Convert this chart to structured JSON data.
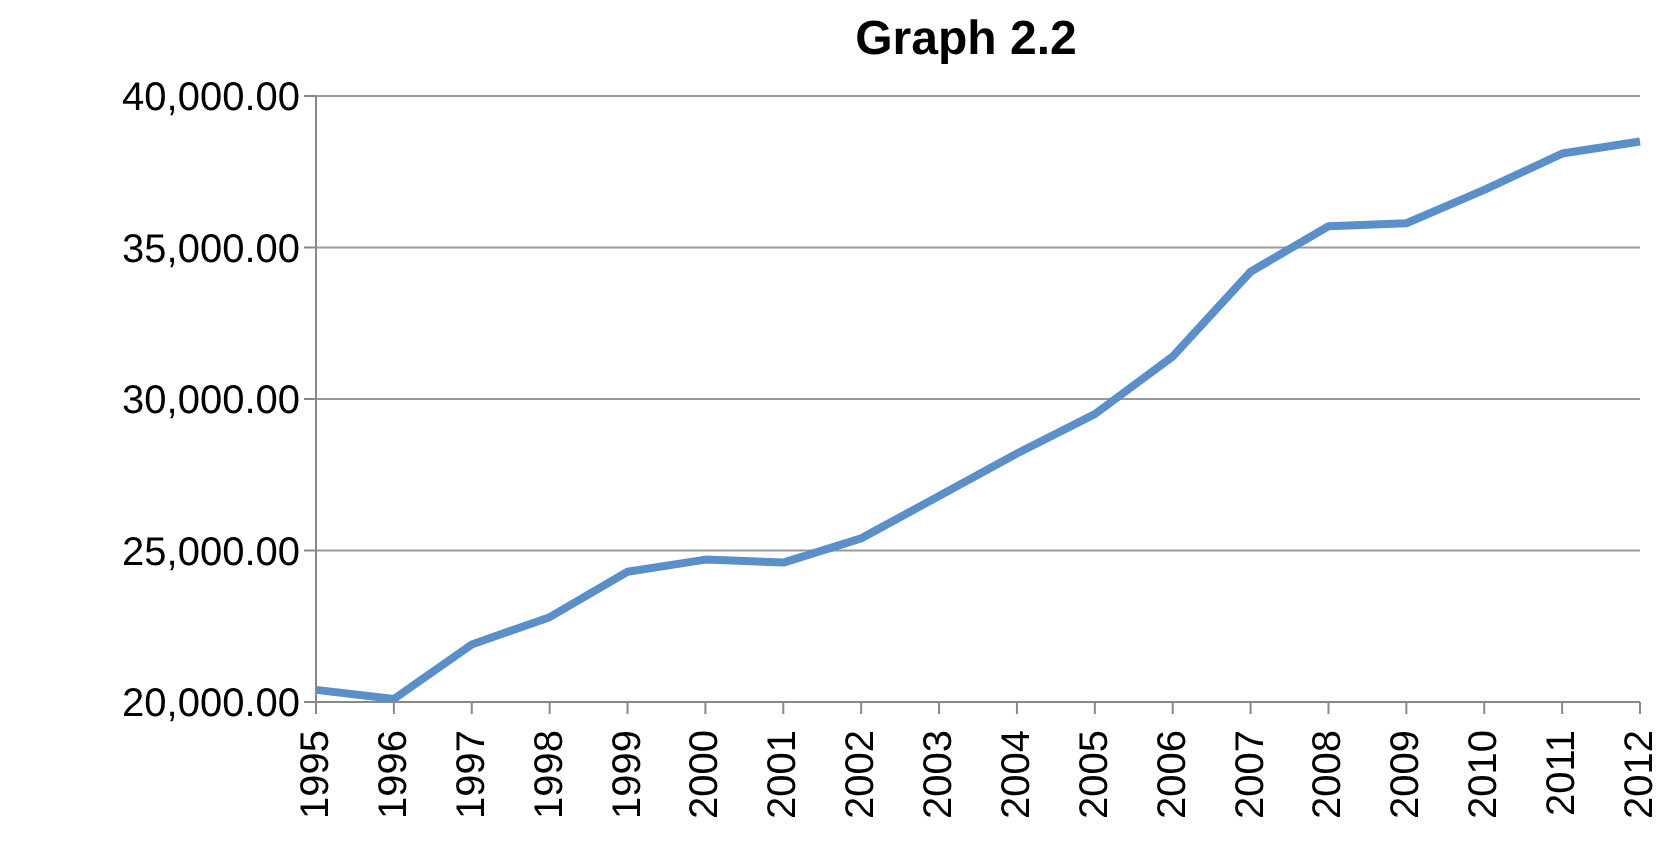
{
  "chart_data": {
    "type": "line",
    "title": "Graph 2.2",
    "categories": [
      "1995",
      "1996",
      "1997",
      "1998",
      "1999",
      "2000",
      "2001",
      "2002",
      "2003",
      "2004",
      "2005",
      "2006",
      "2007",
      "2008",
      "2009",
      "2010",
      "2011",
      "2012"
    ],
    "series": [
      {
        "color": "#5b8fc9",
        "values": [
          20400,
          20100,
          21900,
          22800,
          24300,
          24700,
          24600,
          25400,
          26800,
          28200,
          29500,
          31400,
          34200,
          35700,
          35800,
          36900,
          38100,
          38500
        ]
      }
    ],
    "ylim": [
      20000,
      40000
    ],
    "yticks": [
      {
        "value": 20000,
        "label": "20,000.00"
      },
      {
        "value": 25000,
        "label": "25,000.00"
      },
      {
        "value": 30000,
        "label": "30,000.00"
      },
      {
        "value": 35000,
        "label": "35,000.00"
      },
      {
        "value": 40000,
        "label": "40,000.00"
      }
    ],
    "grid": "y",
    "marker": "none",
    "line_style": "solid",
    "legend": false
  }
}
